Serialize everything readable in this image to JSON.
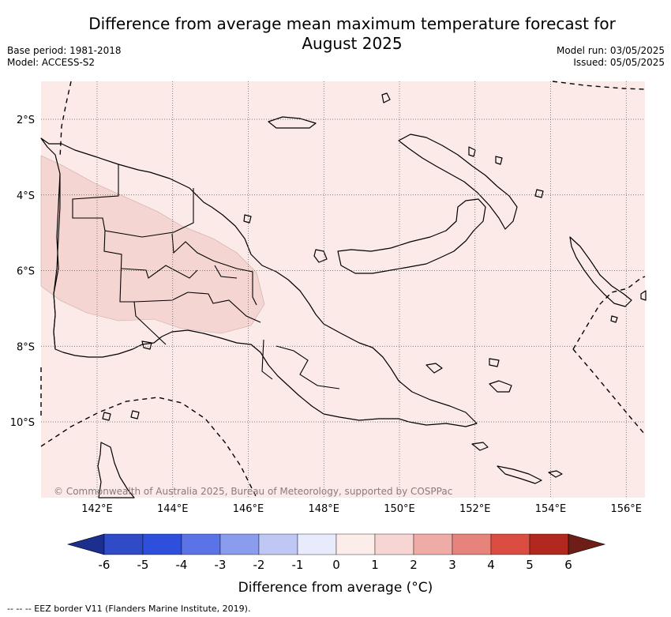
{
  "title_line1": "Difference from average mean maximum temperature forecast for",
  "title_line2": "August 2025",
  "meta_left": {
    "base_period": "Base period: 1981-2018",
    "model": "Model: ACCESS-S2"
  },
  "meta_right": {
    "model_run": "Model run: 03/05/2025",
    "issued": "Issued: 05/05/2025"
  },
  "map": {
    "background_color": "#fbeae8",
    "anomaly_patch_color": "#f5d5d1",
    "lat_labels": [
      "2°S",
      "4°S",
      "6°S",
      "8°S",
      "10°S"
    ],
    "lon_labels": [
      "142°E",
      "144°E",
      "146°E",
      "148°E",
      "150°E",
      "152°E",
      "154°E",
      "156°E"
    ],
    "copyright": "© Commonwealth of Australia 2025, Bureau of Meteorology, supported by COSPPac"
  },
  "colorbar": {
    "ticks": [
      "-6",
      "-5",
      "-4",
      "-3",
      "-2",
      "-1",
      "0",
      "1",
      "2",
      "3",
      "4",
      "5",
      "6"
    ],
    "colors": [
      "#2f4bc8",
      "#2e4fdc",
      "#5a73e6",
      "#8a9ced",
      "#bfc7f4",
      "#e7ebfb",
      "#fcecea",
      "#f6d5d2",
      "#efaca6",
      "#e6837b",
      "#db4d40",
      "#b1281f"
    ],
    "under_color": "#1c2e8e",
    "over_color": "#6e1d17",
    "label": "Difference from average (°C)"
  },
  "footnote": "-- -- -- EEZ border V11 (Flanders Marine Institute, 2019)."
}
